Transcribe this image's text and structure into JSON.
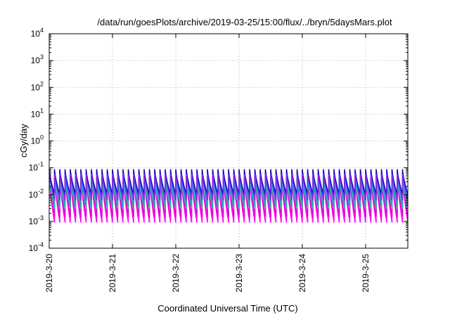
{
  "chart_data": {
    "type": "line",
    "title": "/data/run/goesPlots/archive/2019-03-25/15:00/flux/../bryn/5daysMars.plot",
    "xlabel": "Coordinated Universal Time (UTC)",
    "ylabel": "cGy/day",
    "yscale": "log",
    "ylim": [
      0.0001,
      10000
    ],
    "xlim": [
      "2019-03-20 00:00",
      "2019-03-25 16:00"
    ],
    "grid": true,
    "y_ticks": [
      {
        "value": 0.0001,
        "base": "10",
        "exp": "-4"
      },
      {
        "value": 0.001,
        "base": "10",
        "exp": "-3"
      },
      {
        "value": 0.01,
        "base": "10",
        "exp": "-2"
      },
      {
        "value": 0.1,
        "base": "10",
        "exp": "-1"
      },
      {
        "value": 1,
        "base": "10",
        "exp": "0"
      },
      {
        "value": 10,
        "base": "10",
        "exp": "1"
      },
      {
        "value": 100,
        "base": "10",
        "exp": "2"
      },
      {
        "value": 1000,
        "base": "10",
        "exp": "3"
      },
      {
        "value": 10000,
        "base": "10",
        "exp": "4"
      }
    ],
    "x_ticks": [
      "2019-3-20",
      "2019-3-21",
      "2019-3-22",
      "2019-3-23",
      "2019-3-24",
      "2019-3-25"
    ],
    "series": [
      {
        "color": "#ff00ff",
        "peak": 0.045,
        "trough": 0.0009,
        "phase": 0.0
      },
      {
        "color": "#e600c8",
        "peak": 0.06,
        "trough": 0.0015,
        "phase": 0.01
      },
      {
        "color": "#c71585",
        "peak": 0.09,
        "trough": 0.004,
        "phase": 0.0
      },
      {
        "color": "#20b2aa",
        "peak": 0.035,
        "trough": 0.003,
        "phase": 0.02
      },
      {
        "color": "#00ced1",
        "peak": 0.05,
        "trough": 0.005,
        "phase": 0.015
      },
      {
        "color": "#1e90ff",
        "peak": 0.07,
        "trough": 0.007,
        "phase": 0.01
      },
      {
        "color": "#0000cd",
        "peak": 0.085,
        "trough": 0.01,
        "phase": 0.005
      },
      {
        "color": "#8a2be2",
        "peak": 0.06,
        "trough": 0.006,
        "phase": 0.02
      }
    ],
    "cycle_hours": 2.0
  }
}
